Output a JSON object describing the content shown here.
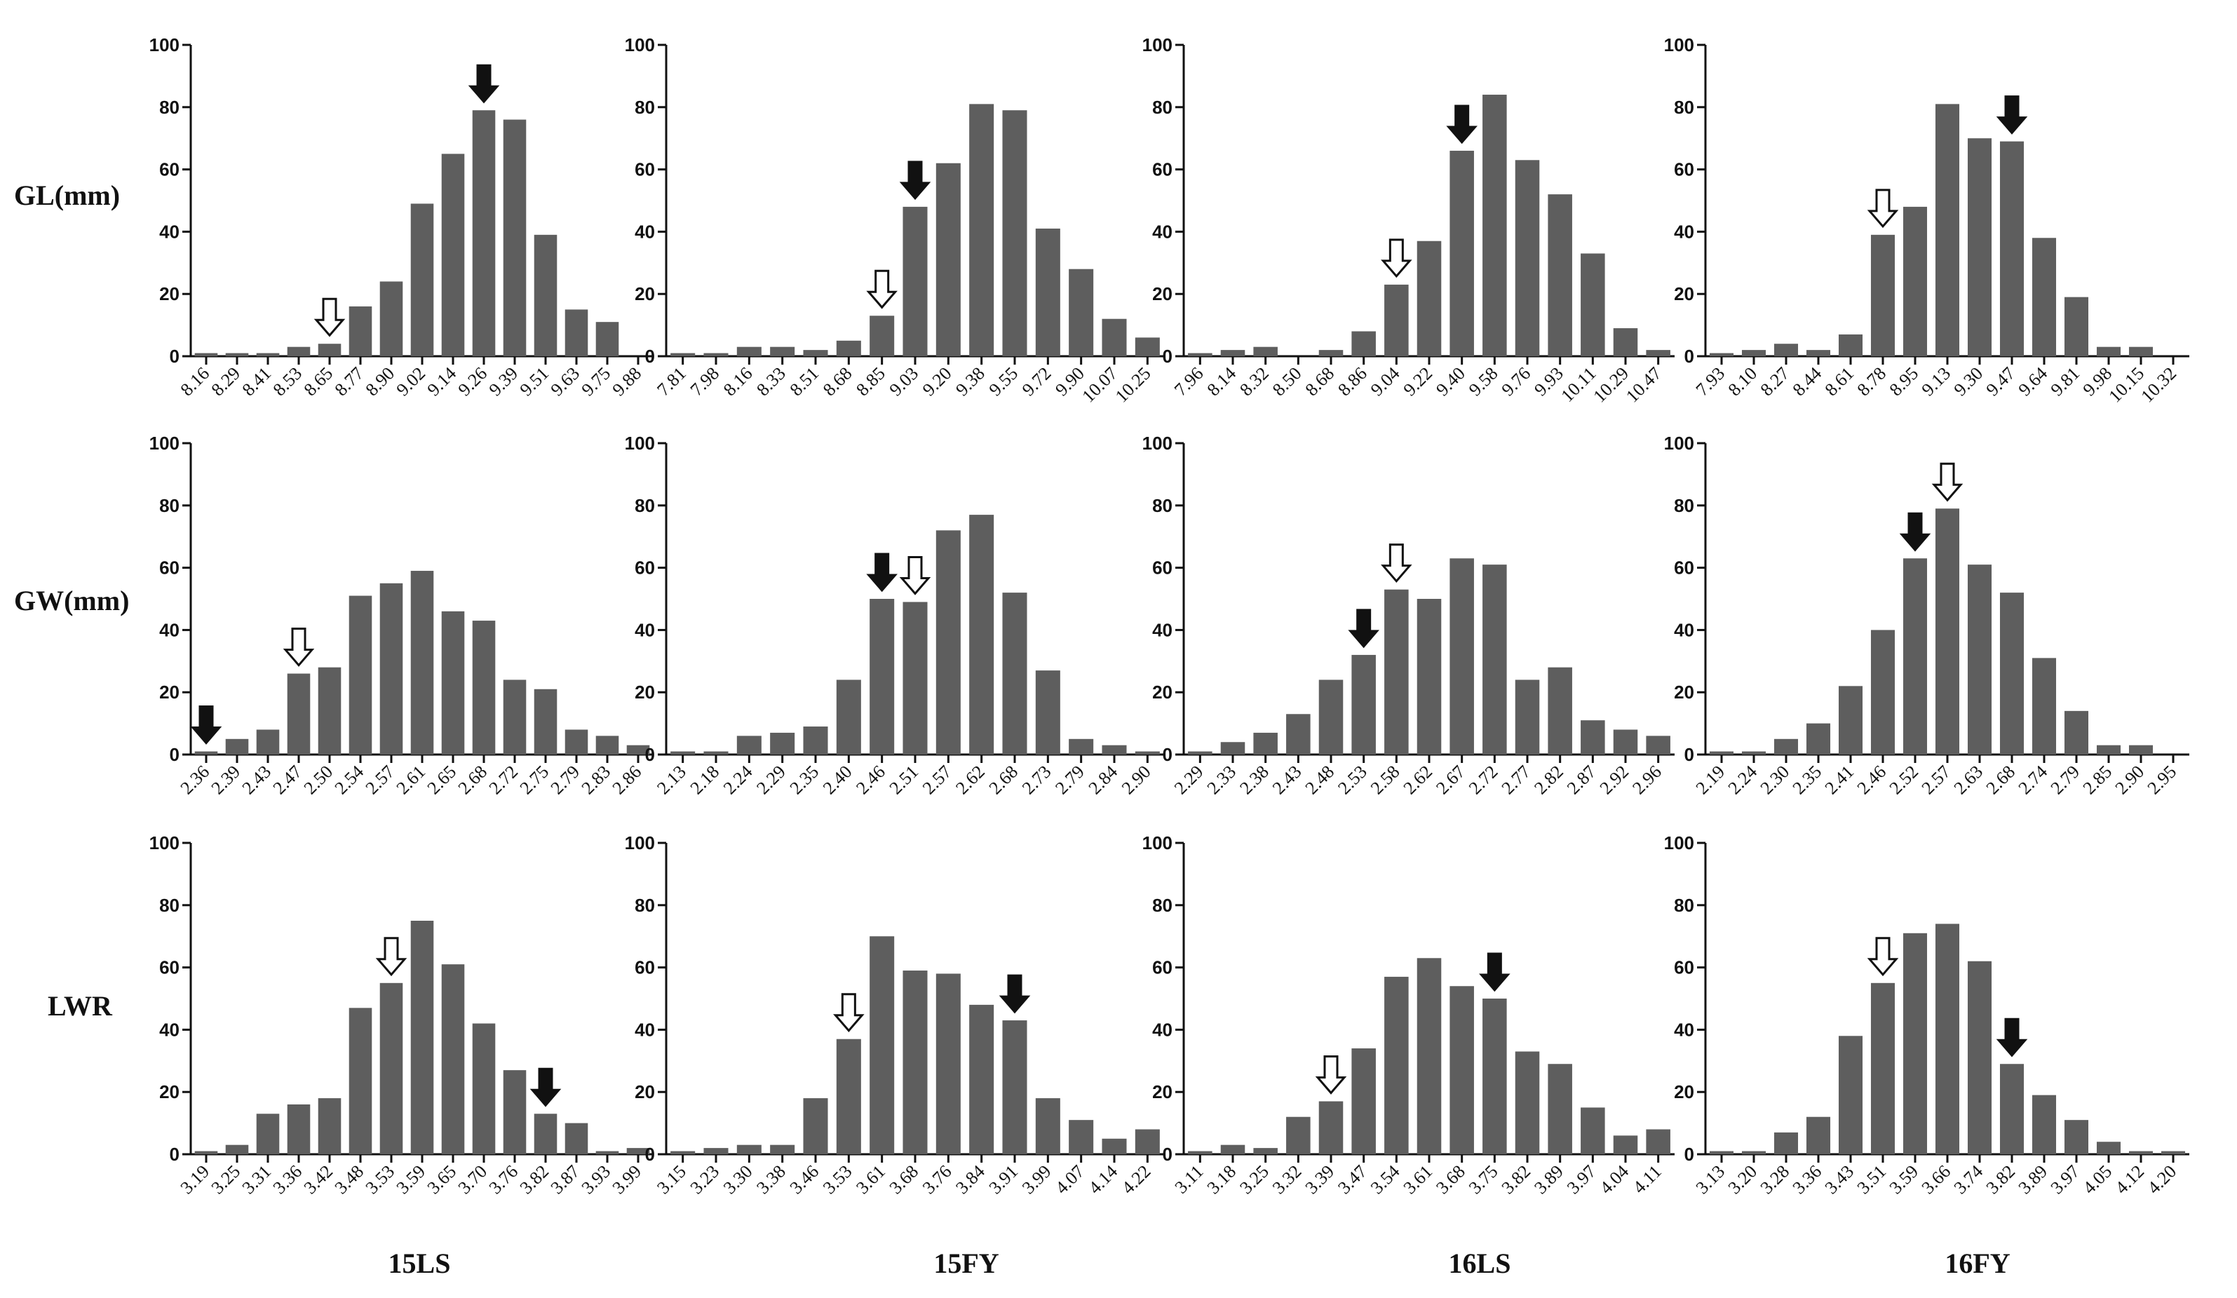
{
  "figure": {
    "row_labels": [
      "GL(mm)",
      "GW(mm)",
      "LWR"
    ],
    "col_labels": [
      "15LS",
      "15FY",
      "16LS",
      "16FY"
    ],
    "bar_color": "#5e5e5e",
    "axis_color": "#111111",
    "y_ticks": [
      0,
      20,
      40,
      60,
      80,
      100
    ]
  },
  "chart_data": [
    {
      "type": "bar",
      "trait": "GL(mm)",
      "env": "15LS",
      "ylim": [
        0,
        100
      ],
      "categories": [
        "8.16",
        "8.29",
        "8.41",
        "8.53",
        "8.65",
        "8.77",
        "8.90",
        "9.02",
        "9.14",
        "9.26",
        "9.39",
        "9.51",
        "9.63",
        "9.75",
        "9.88"
      ],
      "values": [
        1,
        1,
        1,
        3,
        4,
        16,
        24,
        49,
        65,
        79,
        76,
        39,
        15,
        11,
        0
      ],
      "open_arrow_index": 4,
      "filled_arrow_index": 9
    },
    {
      "type": "bar",
      "trait": "GL(mm)",
      "env": "15FY",
      "ylim": [
        0,
        100
      ],
      "categories": [
        "7.81",
        "7.98",
        "8.16",
        "8.33",
        "8.51",
        "8.68",
        "8.85",
        "9.03",
        "9.20",
        "9.38",
        "9.55",
        "9.72",
        "9.90",
        "10.07",
        "10.25"
      ],
      "values": [
        1,
        1,
        3,
        3,
        2,
        5,
        13,
        48,
        62,
        81,
        79,
        41,
        28,
        12,
        6
      ],
      "open_arrow_index": 6,
      "filled_arrow_index": 7
    },
    {
      "type": "bar",
      "trait": "GL(mm)",
      "env": "16LS",
      "ylim": [
        0,
        100
      ],
      "categories": [
        "7.96",
        "8.14",
        "8.32",
        "8.50",
        "8.68",
        "8.86",
        "9.04",
        "9.22",
        "9.40",
        "9.58",
        "9.76",
        "9.93",
        "10.11",
        "10.29",
        "10.47"
      ],
      "values": [
        1,
        2,
        3,
        0,
        2,
        8,
        23,
        37,
        66,
        84,
        63,
        52,
        33,
        9,
        2
      ],
      "open_arrow_index": 6,
      "filled_arrow_index": 8
    },
    {
      "type": "bar",
      "trait": "GL(mm)",
      "env": "16FY",
      "ylim": [
        0,
        100
      ],
      "categories": [
        "7.93",
        "8.10",
        "8.27",
        "8.44",
        "8.61",
        "8.78",
        "8.95",
        "9.13",
        "9.30",
        "9.47",
        "9.64",
        "9.81",
        "9.98",
        "10.15",
        "10.32"
      ],
      "values": [
        1,
        2,
        4,
        2,
        7,
        39,
        48,
        81,
        70,
        69,
        38,
        19,
        3,
        3,
        0
      ],
      "open_arrow_index": 5,
      "filled_arrow_index": 9
    },
    {
      "type": "bar",
      "trait": "GW(mm)",
      "env": "15LS",
      "ylim": [
        0,
        100
      ],
      "categories": [
        "2.36",
        "2.39",
        "2.43",
        "2.47",
        "2.50",
        "2.54",
        "2.57",
        "2.61",
        "2.65",
        "2.68",
        "2.72",
        "2.75",
        "2.79",
        "2.83",
        "2.86"
      ],
      "values": [
        1,
        5,
        8,
        26,
        28,
        51,
        55,
        59,
        46,
        43,
        24,
        21,
        8,
        6,
        3
      ],
      "open_arrow_index": 3,
      "filled_arrow_index": 0
    },
    {
      "type": "bar",
      "trait": "GW(mm)",
      "env": "15FY",
      "ylim": [
        0,
        100
      ],
      "categories": [
        "2.13",
        "2.18",
        "2.24",
        "2.29",
        "2.35",
        "2.40",
        "2.46",
        "2.51",
        "2.57",
        "2.62",
        "2.68",
        "2.73",
        "2.79",
        "2.84",
        "2.90"
      ],
      "values": [
        1,
        1,
        6,
        7,
        9,
        24,
        50,
        49,
        72,
        77,
        52,
        27,
        5,
        3,
        1
      ],
      "open_arrow_index": 7,
      "filled_arrow_index": 6
    },
    {
      "type": "bar",
      "trait": "GW(mm)",
      "env": "16LS",
      "ylim": [
        0,
        100
      ],
      "categories": [
        "2.29",
        "2.33",
        "2.38",
        "2.43",
        "2.48",
        "2.53",
        "2.58",
        "2.62",
        "2.67",
        "2.72",
        "2.77",
        "2.82",
        "2.87",
        "2.92",
        "2.96"
      ],
      "values": [
        1,
        4,
        7,
        13,
        24,
        32,
        53,
        50,
        63,
        61,
        24,
        28,
        11,
        8,
        6
      ],
      "open_arrow_index": 6,
      "filled_arrow_index": 5
    },
    {
      "type": "bar",
      "trait": "GW(mm)",
      "env": "16FY",
      "ylim": [
        0,
        100
      ],
      "categories": [
        "2.19",
        "2.24",
        "2.30",
        "2.35",
        "2.41",
        "2.46",
        "2.52",
        "2.57",
        "2.63",
        "2.68",
        "2.74",
        "2.79",
        "2.85",
        "2.90",
        "2.95"
      ],
      "values": [
        1,
        1,
        5,
        10,
        22,
        40,
        63,
        79,
        61,
        52,
        31,
        14,
        3,
        3,
        0
      ],
      "open_arrow_index": 7,
      "filled_arrow_index": 6
    },
    {
      "type": "bar",
      "trait": "LWR",
      "env": "15LS",
      "ylim": [
        0,
        100
      ],
      "categories": [
        "3.19",
        "3.25",
        "3.31",
        "3.36",
        "3.42",
        "3.48",
        "3.53",
        "3.59",
        "3.65",
        "3.70",
        "3.76",
        "3.82",
        "3.87",
        "3.93",
        "3.99"
      ],
      "values": [
        1,
        3,
        13,
        16,
        18,
        47,
        55,
        75,
        61,
        42,
        27,
        13,
        10,
        1,
        2
      ],
      "open_arrow_index": 6,
      "filled_arrow_index": 11
    },
    {
      "type": "bar",
      "trait": "LWR",
      "env": "15FY",
      "ylim": [
        0,
        100
      ],
      "categories": [
        "3.15",
        "3.23",
        "3.30",
        "3.38",
        "3.46",
        "3.53",
        "3.61",
        "3.68",
        "3.76",
        "3.84",
        "3.91",
        "3.99",
        "4.07",
        "4.14",
        "4.22"
      ],
      "values": [
        1,
        2,
        3,
        3,
        18,
        37,
        70,
        59,
        58,
        48,
        43,
        18,
        11,
        5,
        8
      ],
      "open_arrow_index": 5,
      "filled_arrow_index": 10
    },
    {
      "type": "bar",
      "trait": "LWR",
      "env": "16LS",
      "ylim": [
        0,
        100
      ],
      "categories": [
        "3.11",
        "3.18",
        "3.25",
        "3.32",
        "3.39",
        "3.47",
        "3.54",
        "3.61",
        "3.68",
        "3.75",
        "3.82",
        "3.89",
        "3.97",
        "4.04",
        "4.11"
      ],
      "values": [
        1,
        3,
        2,
        12,
        17,
        34,
        57,
        63,
        54,
        50,
        33,
        29,
        15,
        6,
        8
      ],
      "open_arrow_index": 4,
      "filled_arrow_index": 9
    },
    {
      "type": "bar",
      "trait": "LWR",
      "env": "16FY",
      "ylim": [
        0,
        100
      ],
      "categories": [
        "3.13",
        "3.20",
        "3.28",
        "3.36",
        "3.43",
        "3.51",
        "3.59",
        "3.66",
        "3.74",
        "3.82",
        "3.89",
        "3.97",
        "4.05",
        "4.12",
        "4.20"
      ],
      "values": [
        1,
        1,
        7,
        12,
        38,
        55,
        71,
        74,
        62,
        29,
        19,
        11,
        4,
        1,
        1
      ],
      "open_arrow_index": 5,
      "filled_arrow_index": 9
    }
  ]
}
